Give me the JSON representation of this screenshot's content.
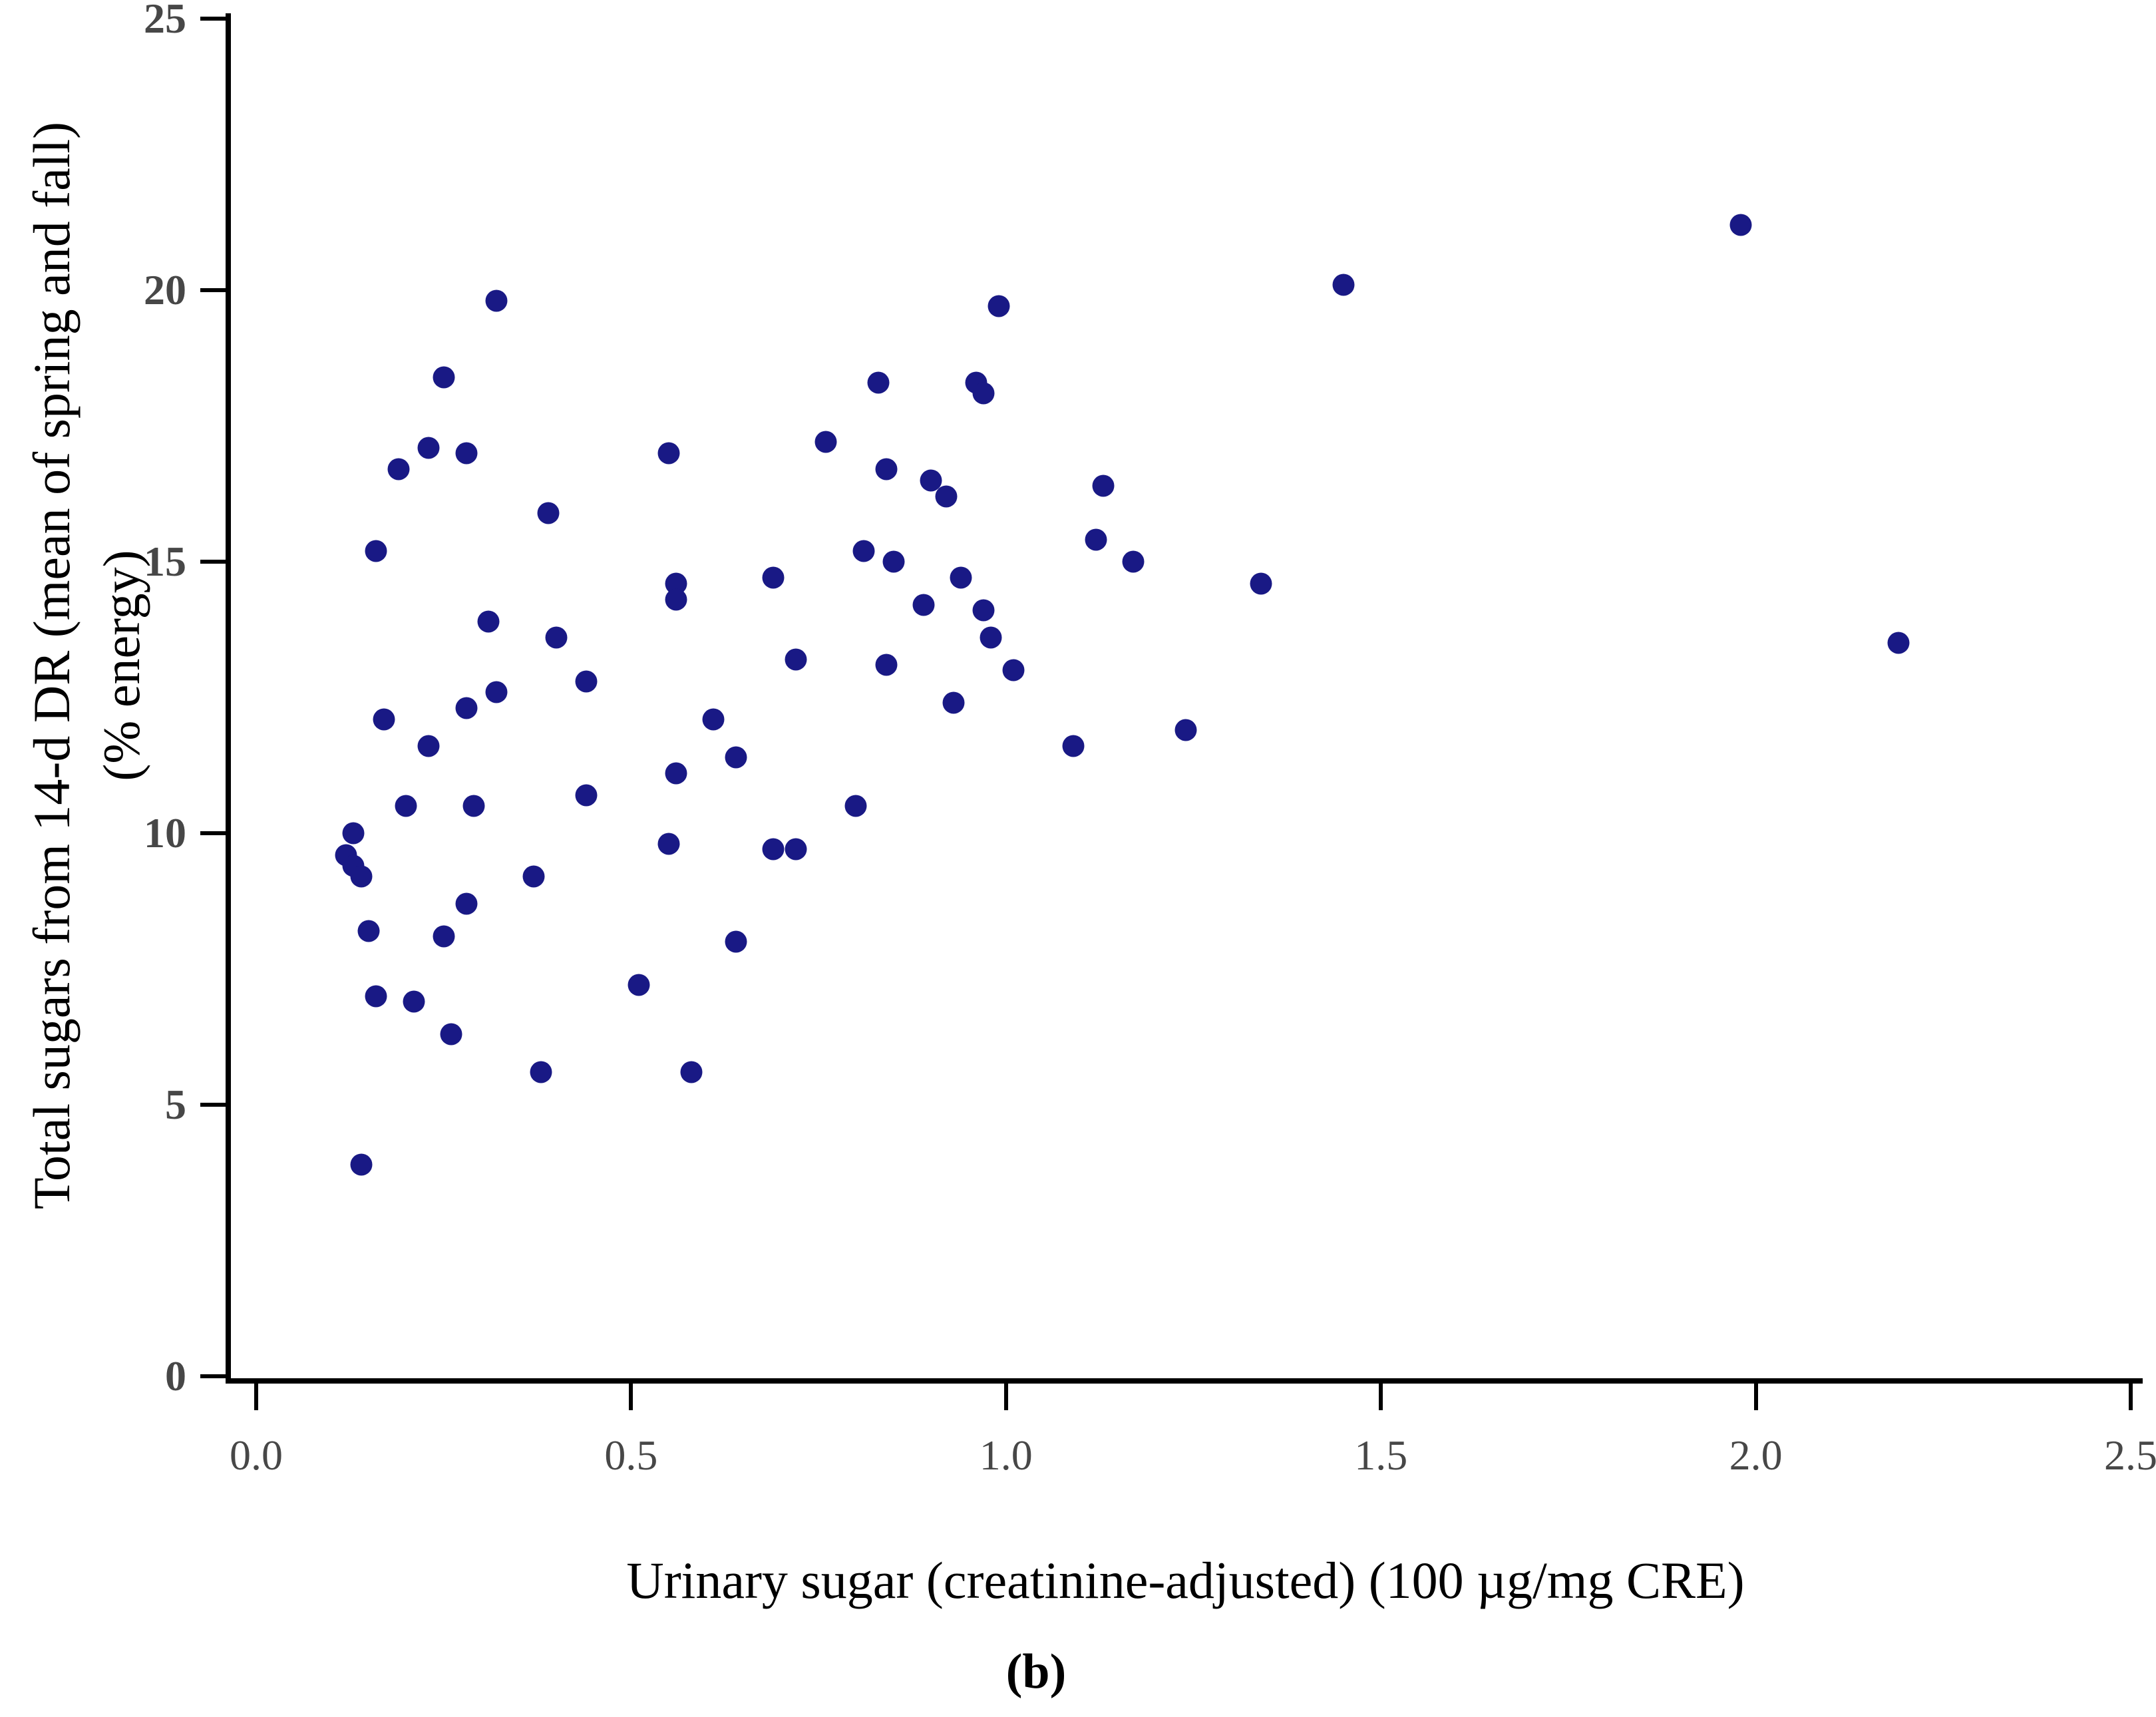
{
  "figure": {
    "caption": "(b)"
  },
  "chart_data": {
    "type": "scatter",
    "title": "",
    "xlabel": "Urinary sugar (creatinine-adjusted) (100 µg/mg CRE)",
    "ylabel_line1": "Total sugars from 14-d DR (mean of spring and fall)",
    "ylabel_line2": "(% energy)",
    "xlim": [
      0,
      2.5
    ],
    "ylim": [
      0,
      25
    ],
    "x_tick_values": [
      0,
      0.5,
      1.0,
      1.5,
      2.0,
      2.5
    ],
    "x_tick_labels": [
      "0.0",
      "0.5",
      "1.0",
      "1.5",
      "2.0",
      "2.5"
    ],
    "y_tick_values": [
      0,
      5,
      10,
      15,
      20,
      25
    ],
    "y_tick_labels": [
      "0",
      "5",
      "10",
      "15",
      "20",
      "25"
    ],
    "grid": false,
    "legend_position": "none",
    "marker_color": "#191985",
    "axis_color": "#000000",
    "points": [
      [
        1.98,
        21.2
      ],
      [
        1.45,
        20.1
      ],
      [
        0.32,
        19.8
      ],
      [
        0.99,
        19.7
      ],
      [
        0.25,
        18.4
      ],
      [
        0.83,
        18.3
      ],
      [
        0.96,
        18.3
      ],
      [
        0.97,
        18.1
      ],
      [
        0.76,
        17.2
      ],
      [
        0.23,
        17.1
      ],
      [
        0.28,
        17.0
      ],
      [
        0.55,
        17.0
      ],
      [
        0.19,
        16.7
      ],
      [
        0.84,
        16.7
      ],
      [
        0.9,
        16.5
      ],
      [
        1.13,
        16.4
      ],
      [
        0.92,
        16.2
      ],
      [
        0.39,
        15.9
      ],
      [
        1.12,
        15.4
      ],
      [
        0.16,
        15.2
      ],
      [
        0.81,
        15.2
      ],
      [
        0.85,
        15.0
      ],
      [
        1.17,
        15.0
      ],
      [
        0.94,
        14.7
      ],
      [
        0.69,
        14.7
      ],
      [
        1.34,
        14.6
      ],
      [
        0.56,
        14.6
      ],
      [
        0.56,
        14.3
      ],
      [
        0.89,
        14.2
      ],
      [
        0.97,
        14.1
      ],
      [
        0.31,
        13.9
      ],
      [
        0.4,
        13.6
      ],
      [
        0.98,
        13.6
      ],
      [
        2.19,
        13.5
      ],
      [
        0.72,
        13.2
      ],
      [
        0.84,
        13.1
      ],
      [
        1.01,
        13.0
      ],
      [
        0.44,
        12.8
      ],
      [
        0.32,
        12.6
      ],
      [
        0.93,
        12.4
      ],
      [
        0.28,
        12.3
      ],
      [
        0.17,
        12.1
      ],
      [
        0.61,
        12.1
      ],
      [
        1.24,
        11.9
      ],
      [
        0.23,
        11.6
      ],
      [
        1.09,
        11.6
      ],
      [
        0.64,
        11.4
      ],
      [
        0.56,
        11.1
      ],
      [
        0.44,
        10.7
      ],
      [
        0.2,
        10.5
      ],
      [
        0.29,
        10.5
      ],
      [
        0.8,
        10.5
      ],
      [
        0.13,
        10.0
      ],
      [
        0.55,
        9.8
      ],
      [
        0.69,
        9.7
      ],
      [
        0.72,
        9.7
      ],
      [
        0.12,
        9.6
      ],
      [
        0.13,
        9.4
      ],
      [
        0.14,
        9.2
      ],
      [
        0.37,
        9.2
      ],
      [
        0.28,
        8.7
      ],
      [
        0.15,
        8.2
      ],
      [
        0.25,
        8.1
      ],
      [
        0.64,
        8.0
      ],
      [
        0.51,
        7.2
      ],
      [
        0.16,
        7.0
      ],
      [
        0.21,
        6.9
      ],
      [
        0.26,
        6.3
      ],
      [
        0.38,
        5.6
      ],
      [
        0.58,
        5.6
      ],
      [
        0.14,
        3.9
      ]
    ]
  }
}
